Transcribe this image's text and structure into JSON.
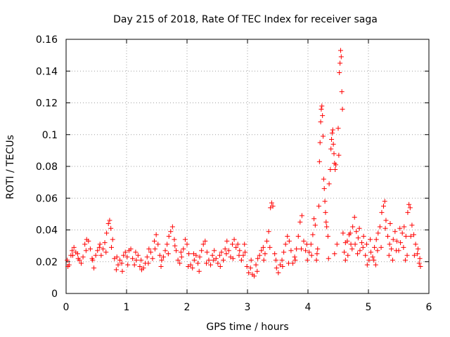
{
  "chart_data": {
    "type": "scatter",
    "title": "Day 215 of 2018, Rate Of TEC Index for receiver saga",
    "xlabel": "GPS time / hours",
    "ylabel": "ROTI / TECUs",
    "xlim": [
      0,
      6
    ],
    "ylim": [
      0,
      0.16
    ],
    "x_ticks": [
      0,
      1,
      2,
      3,
      4,
      5,
      6
    ],
    "x_tick_labels": [
      "0",
      "1",
      "2",
      "3",
      "4",
      "5",
      "6"
    ],
    "y_ticks": [
      0,
      0.02,
      0.04,
      0.06,
      0.08,
      0.1,
      0.12,
      0.14,
      0.16
    ],
    "y_tick_labels": [
      "0",
      "0.02",
      "0.04",
      "0.06",
      "0.08",
      "0.1",
      "0.12",
      "0.14",
      "0.16"
    ],
    "grid": true,
    "marker": "+",
    "marker_color": "#ff0000",
    "series": [
      {
        "name": "ROTI",
        "points": [
          [
            0.02,
            0.021
          ],
          [
            0.05,
            0.018
          ],
          [
            0.08,
            0.024
          ],
          [
            0.1,
            0.027
          ],
          [
            0.13,
            0.029
          ],
          [
            0.16,
            0.026
          ],
          [
            0.19,
            0.025
          ],
          [
            0.22,
            0.021
          ],
          [
            0.25,
            0.019
          ],
          [
            0.28,
            0.023
          ],
          [
            0.31,
            0.031
          ],
          [
            0.34,
            0.034
          ],
          [
            0.37,
            0.033
          ],
          [
            0.4,
            0.028
          ],
          [
            0.43,
            0.022
          ],
          [
            0.46,
            0.016
          ],
          [
            0.49,
            0.024
          ],
          [
            0.52,
            0.027
          ],
          [
            0.55,
            0.029
          ],
          [
            0.58,
            0.024
          ],
          [
            0.61,
            0.028
          ],
          [
            0.64,
            0.032
          ],
          [
            0.67,
            0.038
          ],
          [
            0.7,
            0.044
          ],
          [
            0.72,
            0.046
          ],
          [
            0.74,
            0.041
          ],
          [
            0.77,
            0.034
          ],
          [
            0.8,
            0.022
          ],
          [
            0.83,
            0.015
          ],
          [
            0.86,
            0.018
          ],
          [
            0.89,
            0.021
          ],
          [
            0.92,
            0.019
          ],
          [
            0.95,
            0.024
          ],
          [
            0.98,
            0.026
          ],
          [
            1.01,
            0.023
          ],
          [
            1.04,
            0.027
          ],
          [
            1.07,
            0.028
          ],
          [
            1.1,
            0.022
          ],
          [
            1.13,
            0.018
          ],
          [
            1.16,
            0.021
          ],
          [
            1.19,
            0.024
          ],
          [
            1.22,
            0.017
          ],
          [
            1.25,
            0.015
          ],
          [
            1.28,
            0.016
          ],
          [
            1.31,
            0.019
          ],
          [
            1.34,
            0.023
          ],
          [
            1.37,
            0.028
          ],
          [
            1.4,
            0.026
          ],
          [
            1.43,
            0.022
          ],
          [
            1.46,
            0.033
          ],
          [
            1.49,
            0.037
          ],
          [
            1.52,
            0.031
          ],
          [
            1.55,
            0.024
          ],
          [
            1.58,
            0.021
          ],
          [
            1.61,
            0.023
          ],
          [
            1.64,
            0.027
          ],
          [
            1.67,
            0.031
          ],
          [
            1.7,
            0.036
          ],
          [
            1.73,
            0.039
          ],
          [
            1.76,
            0.042
          ],
          [
            1.79,
            0.034
          ],
          [
            1.82,
            0.027
          ],
          [
            1.85,
            0.021
          ],
          [
            1.88,
            0.019
          ],
          [
            1.91,
            0.023
          ],
          [
            1.94,
            0.028
          ],
          [
            1.97,
            0.034
          ],
          [
            2.0,
            0.031
          ],
          [
            2.03,
            0.025
          ],
          [
            2.06,
            0.018
          ],
          [
            2.09,
            0.016
          ],
          [
            2.12,
            0.021
          ],
          [
            2.15,
            0.024
          ],
          [
            2.18,
            0.019
          ],
          [
            2.21,
            0.023
          ],
          [
            2.24,
            0.027
          ],
          [
            2.27,
            0.031
          ],
          [
            2.3,
            0.033
          ],
          [
            2.33,
            0.026
          ],
          [
            2.36,
            0.021
          ],
          [
            2.39,
            0.018
          ],
          [
            2.42,
            0.024
          ],
          [
            2.45,
            0.027
          ],
          [
            2.48,
            0.022
          ],
          [
            2.51,
            0.019
          ],
          [
            2.54,
            0.024
          ],
          [
            2.57,
            0.026
          ],
          [
            2.6,
            0.021
          ],
          [
            2.63,
            0.028
          ],
          [
            2.66,
            0.033
          ],
          [
            2.69,
            0.027
          ],
          [
            2.72,
            0.023
          ],
          [
            2.75,
            0.031
          ],
          [
            2.78,
            0.034
          ],
          [
            2.81,
            0.029
          ],
          [
            2.84,
            0.031
          ],
          [
            2.87,
            0.027
          ],
          [
            2.9,
            0.021
          ],
          [
            2.93,
            0.024
          ],
          [
            2.96,
            0.026
          ],
          [
            2.99,
            0.017
          ],
          [
            3.02,
            0.013
          ],
          [
            3.05,
            0.016
          ],
          [
            3.08,
            0.012
          ],
          [
            3.11,
            0.011
          ],
          [
            3.14,
            0.018
          ],
          [
            3.17,
            0.022
          ],
          [
            3.2,
            0.024
          ],
          [
            3.23,
            0.027
          ],
          [
            3.26,
            0.029
          ],
          [
            3.29,
            0.025
          ],
          [
            3.32,
            0.033
          ],
          [
            3.35,
            0.039
          ],
          [
            3.38,
            0.054
          ],
          [
            3.4,
            0.057
          ],
          [
            3.42,
            0.055
          ],
          [
            3.45,
            0.025
          ],
          [
            3.48,
            0.016
          ],
          [
            3.51,
            0.013
          ],
          [
            3.54,
            0.018
          ],
          [
            3.57,
            0.021
          ],
          [
            3.6,
            0.026
          ],
          [
            3.63,
            0.031
          ],
          [
            3.66,
            0.036
          ],
          [
            3.69,
            0.033
          ],
          [
            3.72,
            0.027
          ],
          [
            3.75,
            0.019
          ],
          [
            3.78,
            0.023
          ],
          [
            3.81,
            0.028
          ],
          [
            3.84,
            0.036
          ],
          [
            3.87,
            0.045
          ],
          [
            3.9,
            0.049
          ],
          [
            3.93,
            0.033
          ],
          [
            3.96,
            0.027
          ],
          [
            3.99,
            0.021
          ],
          [
            4.02,
            0.026
          ],
          [
            4.05,
            0.031
          ],
          [
            4.08,
            0.037
          ],
          [
            4.1,
            0.047
          ],
          [
            4.12,
            0.043
          ],
          [
            4.14,
            0.021
          ],
          [
            4.16,
            0.028
          ],
          [
            4.18,
            0.055
          ],
          [
            4.19,
            0.083
          ],
          [
            4.2,
            0.095
          ],
          [
            4.21,
            0.108
          ],
          [
            4.22,
            0.116
          ],
          [
            4.23,
            0.118
          ],
          [
            4.24,
            0.112
          ],
          [
            4.25,
            0.099
          ],
          [
            4.26,
            0.072
          ],
          [
            4.27,
            0.066
          ],
          [
            4.28,
            0.058
          ],
          [
            4.29,
            0.051
          ],
          [
            4.3,
            0.045
          ],
          [
            4.31,
            0.042
          ],
          [
            4.33,
            0.036
          ],
          [
            4.35,
            0.069
          ],
          [
            4.37,
            0.078
          ],
          [
            4.38,
            0.091
          ],
          [
            4.39,
            0.097
          ],
          [
            4.4,
            0.101
          ],
          [
            4.41,
            0.103
          ],
          [
            4.42,
            0.094
          ],
          [
            4.43,
            0.088
          ],
          [
            4.44,
            0.082
          ],
          [
            4.45,
            0.078
          ],
          [
            4.46,
            0.081
          ],
          [
            4.48,
            0.031
          ],
          [
            4.5,
            0.104
          ],
          [
            4.51,
            0.087
          ],
          [
            4.52,
            0.139
          ],
          [
            4.53,
            0.145
          ],
          [
            4.54,
            0.153
          ],
          [
            4.55,
            0.149
          ],
          [
            4.56,
            0.127
          ],
          [
            4.57,
            0.116
          ],
          [
            4.58,
            0.038
          ],
          [
            4.6,
            0.026
          ],
          [
            4.62,
            0.021
          ],
          [
            4.65,
            0.033
          ],
          [
            4.68,
            0.037
          ],
          [
            4.71,
            0.031
          ],
          [
            4.74,
            0.042
          ],
          [
            4.77,
            0.048
          ],
          [
            4.8,
            0.039
          ],
          [
            4.83,
            0.035
          ],
          [
            4.86,
            0.027
          ],
          [
            4.89,
            0.032
          ],
          [
            4.92,
            0.036
          ],
          [
            4.95,
            0.024
          ],
          [
            4.98,
            0.018
          ],
          [
            5.01,
            0.021
          ],
          [
            5.04,
            0.026
          ],
          [
            5.07,
            0.023
          ],
          [
            5.1,
            0.029
          ],
          [
            5.13,
            0.034
          ],
          [
            5.16,
            0.038
          ],
          [
            5.19,
            0.042
          ],
          [
            5.22,
            0.051
          ],
          [
            5.25,
            0.055
          ],
          [
            5.27,
            0.058
          ],
          [
            5.29,
            0.046
          ],
          [
            5.32,
            0.036
          ],
          [
            5.35,
            0.031
          ],
          [
            5.38,
            0.028
          ],
          [
            5.41,
            0.034
          ],
          [
            5.44,
            0.039
          ],
          [
            5.47,
            0.033
          ],
          [
            5.5,
            0.027
          ],
          [
            5.53,
            0.032
          ],
          [
            5.56,
            0.038
          ],
          [
            5.59,
            0.042
          ],
          [
            5.62,
            0.036
          ],
          [
            5.65,
            0.051
          ],
          [
            5.67,
            0.056
          ],
          [
            5.69,
            0.054
          ],
          [
            5.72,
            0.043
          ],
          [
            5.75,
            0.037
          ],
          [
            5.78,
            0.031
          ],
          [
            5.81,
            0.025
          ],
          [
            5.84,
            0.019
          ],
          [
            5.86,
            0.017
          ],
          [
            0.03,
            0.017
          ],
          [
            0.11,
            0.024
          ],
          [
            0.2,
            0.022
          ],
          [
            0.33,
            0.027
          ],
          [
            0.44,
            0.021
          ],
          [
            0.56,
            0.031
          ],
          [
            0.66,
            0.026
          ],
          [
            0.75,
            0.029
          ],
          [
            0.84,
            0.023
          ],
          [
            0.93,
            0.014
          ],
          [
            1.02,
            0.018
          ],
          [
            1.15,
            0.026
          ],
          [
            1.24,
            0.021
          ],
          [
            1.36,
            0.019
          ],
          [
            1.47,
            0.028
          ],
          [
            1.57,
            0.017
          ],
          [
            1.69,
            0.025
          ],
          [
            1.8,
            0.03
          ],
          [
            1.9,
            0.026
          ],
          [
            2.02,
            0.017
          ],
          [
            2.11,
            0.025
          ],
          [
            2.2,
            0.014
          ],
          [
            2.32,
            0.019
          ],
          [
            2.44,
            0.021
          ],
          [
            2.55,
            0.017
          ],
          [
            2.65,
            0.025
          ],
          [
            2.76,
            0.022
          ],
          [
            2.86,
            0.024
          ],
          [
            2.95,
            0.031
          ],
          [
            3.06,
            0.021
          ],
          [
            3.16,
            0.014
          ],
          [
            3.27,
            0.021
          ],
          [
            3.37,
            0.029
          ],
          [
            3.47,
            0.021
          ],
          [
            3.58,
            0.017
          ],
          [
            3.68,
            0.019
          ],
          [
            3.79,
            0.021
          ],
          [
            3.89,
            0.028
          ],
          [
            3.98,
            0.031
          ],
          [
            4.06,
            0.024
          ],
          [
            4.15,
            0.025
          ],
          [
            4.34,
            0.022
          ],
          [
            4.44,
            0.025
          ],
          [
            4.62,
            0.032
          ],
          [
            4.7,
            0.038
          ],
          [
            4.78,
            0.031
          ],
          [
            4.85,
            0.041
          ],
          [
            4.91,
            0.029
          ],
          [
            4.97,
            0.031
          ],
          [
            5.03,
            0.034
          ],
          [
            5.09,
            0.021
          ],
          [
            5.15,
            0.027
          ],
          [
            5.21,
            0.029
          ],
          [
            5.28,
            0.041
          ],
          [
            5.34,
            0.024
          ],
          [
            5.4,
            0.021
          ],
          [
            5.46,
            0.027
          ],
          [
            5.52,
            0.041
          ],
          [
            5.58,
            0.029
          ],
          [
            5.64,
            0.024
          ],
          [
            5.7,
            0.036
          ],
          [
            5.76,
            0.024
          ],
          [
            5.82,
            0.028
          ],
          [
            5.85,
            0.022
          ],
          [
            4.66,
            0.024
          ],
          [
            4.73,
            0.028
          ],
          [
            4.82,
            0.025
          ],
          [
            5.12,
            0.018
          ],
          [
            5.36,
            0.044
          ],
          [
            5.61,
            0.021
          ]
        ]
      }
    ]
  }
}
